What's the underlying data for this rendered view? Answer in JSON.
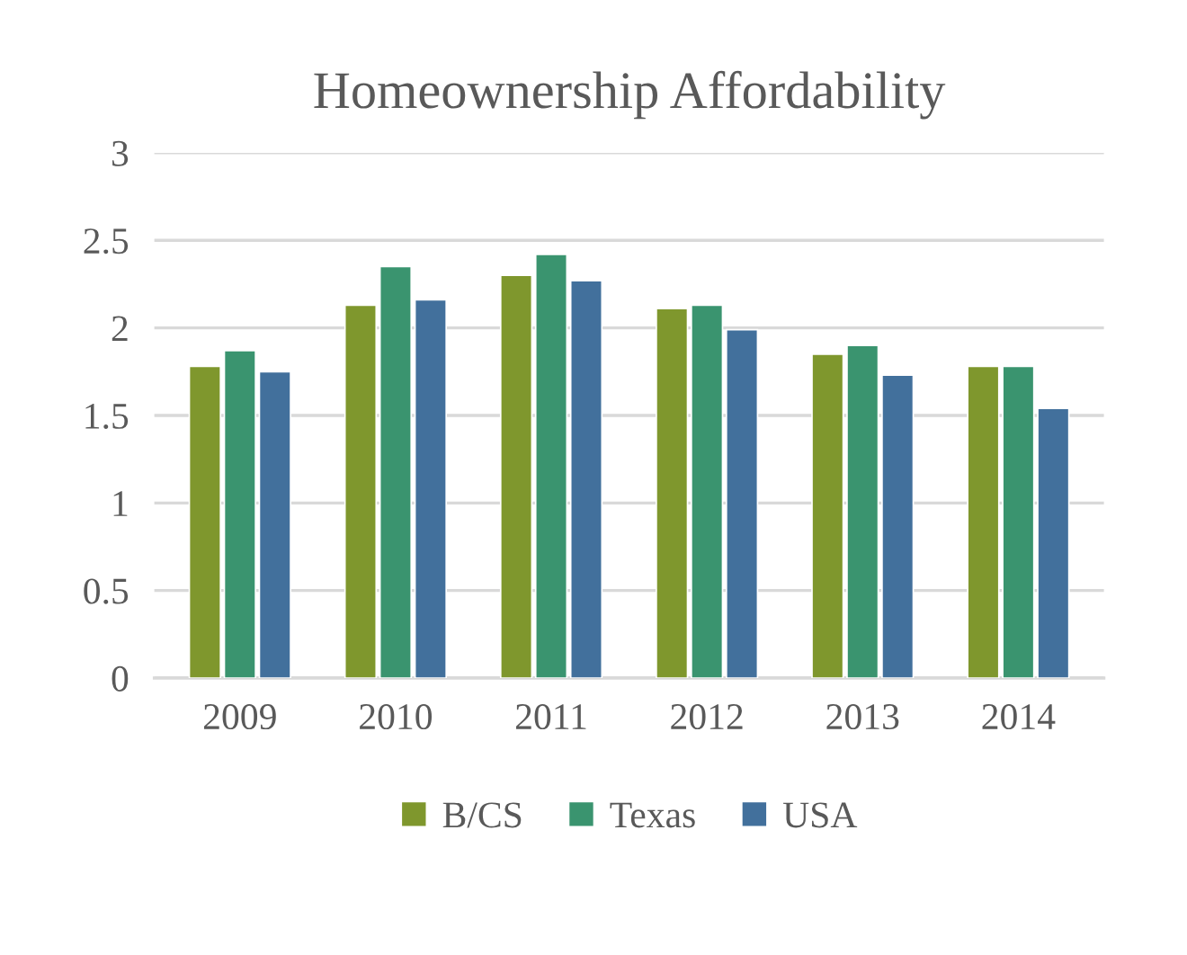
{
  "chart_data": {
    "type": "bar",
    "title": "Homeownership Affordability",
    "categories": [
      "2009",
      "2010",
      "2011",
      "2012",
      "2013",
      "2014"
    ],
    "series": [
      {
        "name": "B/CS",
        "color": "#7f972d",
        "values": [
          1.78,
          2.13,
          2.3,
          2.11,
          1.85,
          1.78
        ]
      },
      {
        "name": "Texas",
        "color": "#3a946f",
        "values": [
          1.87,
          2.35,
          2.42,
          2.13,
          1.9,
          1.78
        ]
      },
      {
        "name": "USA",
        "color": "#42709c",
        "values": [
          1.75,
          2.16,
          2.27,
          1.99,
          1.73,
          1.54
        ]
      }
    ],
    "ylim": [
      0,
      3
    ],
    "yticks": [
      0,
      0.5,
      1,
      1.5,
      2,
      2.5,
      3
    ],
    "grid": "y",
    "legend": "bottom"
  }
}
